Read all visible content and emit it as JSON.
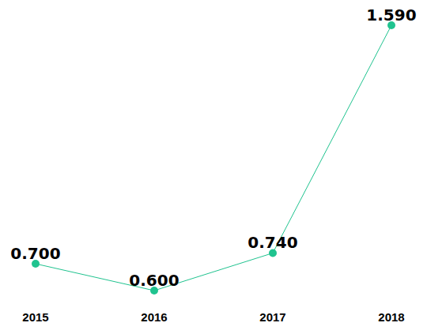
{
  "chart_data": {
    "type": "line",
    "categories": [
      "2015",
      "2016",
      "2017",
      "2018"
    ],
    "values": [
      0.7,
      0.6,
      0.74,
      1.59
    ],
    "value_labels": [
      "0.700",
      "0.600",
      "0.740",
      "1.590"
    ],
    "color": "#20c38f",
    "marker": "circle",
    "line_style": "solid",
    "data_labels": true,
    "tick_labels": "x",
    "grid": false
  }
}
